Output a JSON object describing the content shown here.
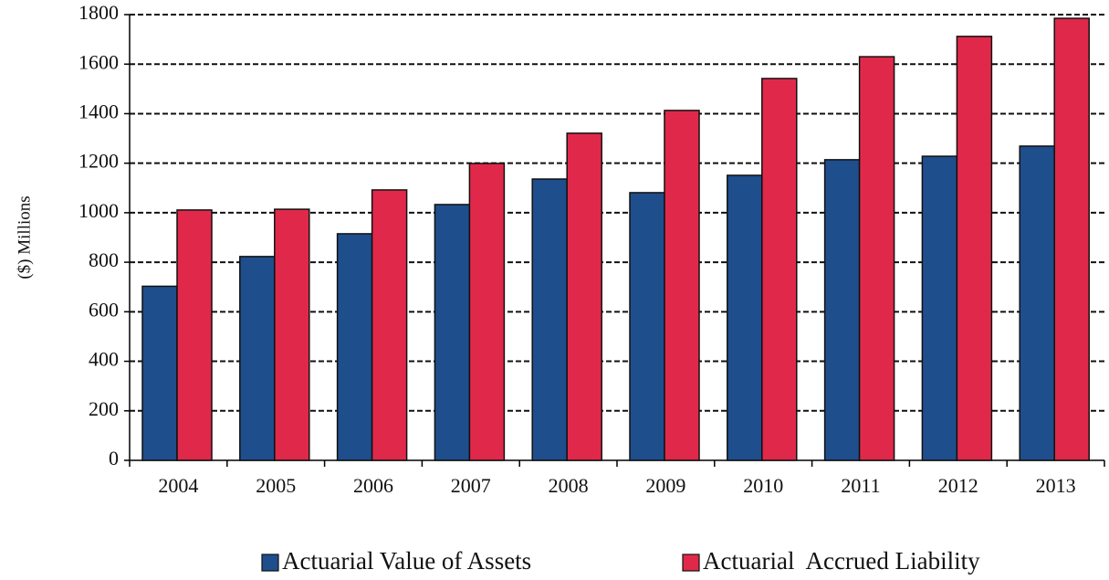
{
  "chart_data": {
    "type": "bar",
    "y_label": "($) Millions",
    "categories": [
      "2004",
      "2005",
      "2006",
      "2007",
      "2008",
      "2009",
      "2010",
      "2011",
      "2012",
      "2013"
    ],
    "series": [
      {
        "name": "Actuarial Value of Assets",
        "color": "#1f4e8c",
        "values": [
          703,
          823,
          915,
          1033,
          1136,
          1081,
          1151,
          1214,
          1228,
          1269
        ]
      },
      {
        "name": "Actuarial  Accrued Liability",
        "color": "#e0294a",
        "values": [
          1011,
          1014,
          1092,
          1199,
          1321,
          1413,
          1542,
          1630,
          1712,
          1785
        ]
      }
    ],
    "ylim": [
      0,
      1800
    ],
    "yticks": [
      0,
      200,
      400,
      600,
      800,
      1000,
      1200,
      1400,
      1600,
      1800
    ],
    "grid": true
  }
}
